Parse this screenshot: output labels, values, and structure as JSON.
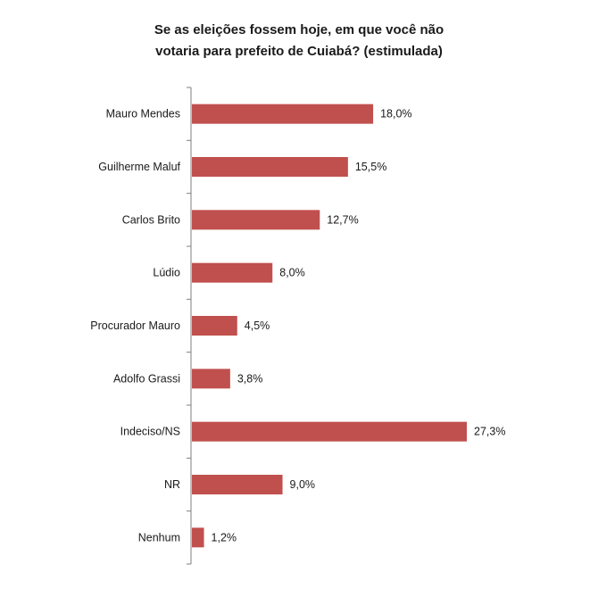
{
  "chart_data": {
    "type": "bar",
    "orientation": "horizontal",
    "title_lines": [
      "Se as eleições fossem hoje, em que você não",
      "votaria para prefeito de Cuiabá?  (estimulada)"
    ],
    "categories": [
      "Mauro Mendes",
      "Guilherme Maluf",
      "Carlos Brito",
      "Lúdio",
      "Procurador Mauro",
      "Adolfo Grassi",
      "Indeciso/NS",
      "NR",
      "Nenhum"
    ],
    "values": [
      18.0,
      15.5,
      12.7,
      8.0,
      4.5,
      3.8,
      27.3,
      9.0,
      1.2
    ],
    "value_labels": [
      "18,0%",
      "15,5%",
      "12,7%",
      "8,0%",
      "4,5%",
      "3,8%",
      "27,3%",
      "9,0%",
      "1,2%"
    ],
    "xlim": [
      0,
      27.3
    ],
    "grid": false,
    "legend": "none",
    "bar_color": "#c0504d",
    "axis_color": "#7f7f7f"
  }
}
